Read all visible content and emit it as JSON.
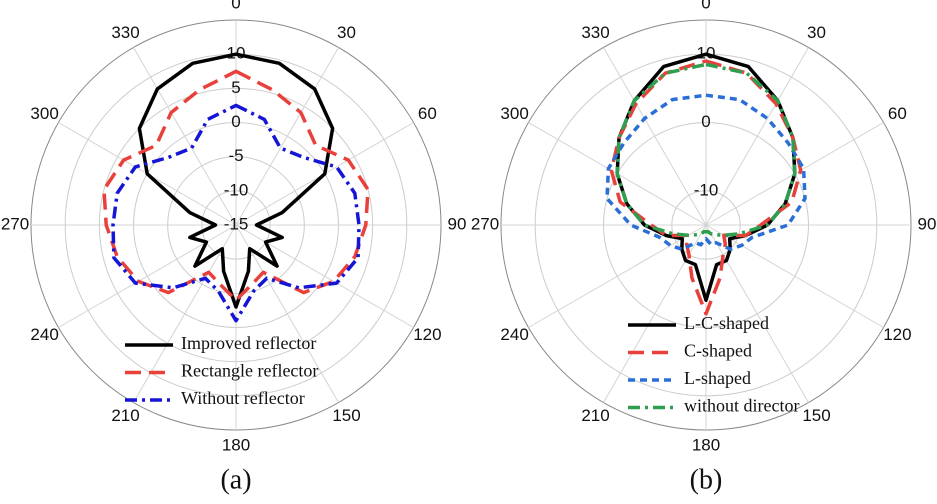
{
  "chart_data": [
    {
      "type": "polar",
      "label": "(a)",
      "direction": "clockwise",
      "zero": "top",
      "rlim": [
        -15,
        15
      ],
      "rticks": [
        -15,
        -10,
        -5,
        0,
        5,
        10
      ],
      "angle_ticks": [
        0,
        30,
        60,
        90,
        120,
        150,
        180,
        210,
        240,
        270,
        300,
        330
      ],
      "theta": [
        0,
        15,
        30,
        45,
        60,
        75,
        90,
        105,
        120,
        135,
        150,
        165,
        180,
        195,
        210,
        225,
        240,
        255,
        270,
        285,
        300,
        315,
        330,
        345
      ],
      "legend": "bottom",
      "series": [
        {
          "name": "Improved reflector",
          "color": "#000000",
          "dash": "solid",
          "values": [
            10,
            9.5,
            8,
            5,
            0,
            -8,
            -12,
            -8,
            -10,
            -6.5,
            -11,
            -8,
            -3,
            -8,
            -11,
            -6.5,
            -10,
            -8,
            -12,
            -8,
            0,
            5,
            8,
            9.5
          ]
        },
        {
          "name": "Rectangle reflector",
          "color": "#e8413c",
          "dash": "dashed",
          "values": [
            7.5,
            5.5,
            4,
            1.5,
            4,
            5,
            4,
            3,
            1.5,
            -1,
            -7,
            -6,
            -4,
            -6,
            -7,
            -1,
            1.5,
            3,
            4,
            5,
            4,
            1.5,
            4,
            5.5
          ]
        },
        {
          "name": "Without reflector",
          "color": "#1515d8",
          "dash": "dashdot",
          "values": [
            2.5,
            1,
            -2,
            -1,
            2,
            3,
            3,
            3.5,
            2,
            -2,
            -6,
            -5,
            -1,
            -5,
            -6,
            -2,
            2,
            3.5,
            3,
            3,
            2,
            -1,
            -2,
            1
          ]
        }
      ]
    },
    {
      "type": "polar",
      "label": "(b)",
      "direction": "clockwise",
      "zero": "top",
      "rlim": [
        -15,
        15
      ],
      "rticks": [
        -10,
        0,
        10
      ],
      "angle_ticks": [
        0,
        30,
        60,
        90,
        120,
        150,
        180,
        210,
        240,
        270,
        300,
        330
      ],
      "theta": [
        0,
        15,
        30,
        45,
        60,
        75,
        90,
        105,
        120,
        135,
        150,
        165,
        180,
        195,
        210,
        225,
        240,
        255,
        270,
        285,
        300,
        315,
        330,
        345
      ],
      "legend": "bottom",
      "series": [
        {
          "name": "L-C-shaped",
          "color": "#000000",
          "dash": "solid",
          "values": [
            10,
            9,
            6,
            3,
            0,
            -3,
            -6,
            -9,
            -11,
            -10,
            -9,
            -9,
            -4,
            -9,
            -9,
            -10,
            -11,
            -9,
            -6,
            -3,
            0,
            3,
            6,
            9
          ]
        },
        {
          "name": "C-shaped",
          "color": "#e8413c",
          "dash": "dashed",
          "values": [
            9,
            8,
            5.5,
            3,
            1,
            -2,
            -7,
            -9,
            -12,
            -11,
            -10,
            -7,
            -2,
            -7,
            -10,
            -11,
            -12,
            -9,
            -7,
            -2,
            1,
            3,
            5.5,
            8
          ]
        },
        {
          "name": "L-shaped",
          "color": "#2a6fd6",
          "dash": "dotted",
          "values": [
            4,
            4,
            3,
            2,
            1.5,
            0,
            -3,
            -8,
            -9,
            -10,
            -12,
            -12,
            -13,
            -12,
            -12,
            -10,
            -9,
            -8,
            -4,
            0,
            1.5,
            2,
            3,
            4
          ]
        },
        {
          "name": "without director",
          "color": "#2e9e4f",
          "dash": "dashdot",
          "values": [
            8.5,
            8,
            6,
            3,
            0,
            -3,
            -6,
            -10,
            -12,
            -13,
            -13.5,
            -14,
            -14,
            -14,
            -13.5,
            -13,
            -12,
            -10,
            -6,
            -3,
            0,
            3,
            6,
            8
          ]
        }
      ]
    }
  ]
}
